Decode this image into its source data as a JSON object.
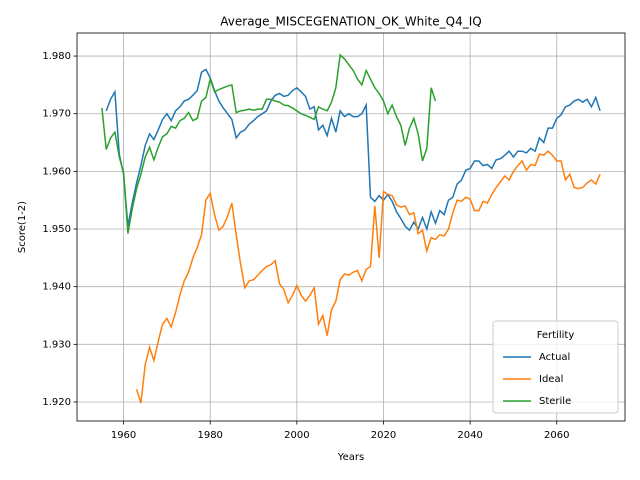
{
  "chart_data": {
    "type": "line",
    "title": "Average_MISCEGENATION_OK_White_Q4_IQ",
    "x_label": "Years",
    "y_label": "Score(1-2)",
    "legend_title": "Fertility",
    "legend": "lower right",
    "grid": true,
    "xlim": [
      1949.25,
      2075.75
    ],
    "ylim": [
      1.9167,
      1.984
    ],
    "xticks": [
      1960,
      1980,
      2000,
      2020,
      2040,
      2060
    ],
    "yticks": [
      {
        "value": 1.92,
        "label": "1.920"
      },
      {
        "value": 1.93,
        "label": "1.930"
      },
      {
        "value": 1.94,
        "label": "1.940"
      },
      {
        "value": 1.95,
        "label": "1.950"
      },
      {
        "value": 1.96,
        "label": "1.960"
      },
      {
        "value": 1.97,
        "label": "1.970"
      },
      {
        "value": 1.98,
        "label": "1.980"
      }
    ],
    "x": [
      1955,
      1956,
      1957,
      1958,
      1959,
      1960,
      1961,
      1962,
      1963,
      1964,
      1965,
      1966,
      1967,
      1968,
      1969,
      1970,
      1971,
      1972,
      1973,
      1974,
      1975,
      1976,
      1977,
      1978,
      1979,
      1980,
      1981,
      1982,
      1983,
      1984,
      1985,
      1986,
      1987,
      1988,
      1989,
      1990,
      1991,
      1992,
      1993,
      1994,
      1995,
      1996,
      1997,
      1998,
      1999,
      2000,
      2001,
      2002,
      2003,
      2004,
      2005,
      2006,
      2007,
      2008,
      2009,
      2010,
      2011,
      2012,
      2013,
      2014,
      2015,
      2016,
      2017,
      2018,
      2019,
      2020,
      2021,
      2022,
      2023,
      2024,
      2025,
      2026,
      2027,
      2028,
      2029,
      2030,
      2031,
      2032,
      2033,
      2034,
      2035,
      2036,
      2037,
      2038,
      2039,
      2040,
      2041,
      2042,
      2043,
      2044,
      2045,
      2046,
      2047,
      2048,
      2049,
      2050,
      2051,
      2052,
      2053,
      2054,
      2055,
      2056,
      2057,
      2058,
      2059,
      2060,
      2061,
      2062,
      2063,
      2064,
      2065,
      2066,
      2067,
      2068,
      2069,
      2070
    ],
    "series": [
      {
        "name": "Actual",
        "color": "#1f77b4",
        "values": [
          null,
          1.9705,
          1.9725,
          1.9738,
          1.963,
          1.9595,
          1.9505,
          1.9545,
          1.958,
          1.961,
          1.9645,
          1.9665,
          1.9655,
          1.9672,
          1.969,
          1.97,
          1.9688,
          1.9705,
          1.9712,
          1.9722,
          1.9725,
          1.9732,
          1.974,
          1.9772,
          1.9777,
          1.9762,
          1.974,
          1.9722,
          1.971,
          1.97,
          1.969,
          1.9658,
          1.9668,
          1.9672,
          1.9682,
          1.9688,
          1.9695,
          1.97,
          1.9705,
          1.9722,
          1.9732,
          1.9735,
          1.973,
          1.9732,
          1.974,
          1.9745,
          1.9738,
          1.973,
          1.9708,
          1.9712,
          1.9672,
          1.968,
          1.9662,
          1.9692,
          1.9668,
          1.9705,
          1.9695,
          1.97,
          1.9695,
          1.9695,
          1.97,
          1.9715,
          1.9555,
          1.9548,
          1.9558,
          1.955,
          1.956,
          1.9548,
          1.953,
          1.9518,
          1.9505,
          1.9498,
          1.9512,
          1.95,
          1.952,
          1.95,
          1.953,
          1.951,
          1.9532,
          1.9525,
          1.955,
          1.9555,
          1.9578,
          1.9585,
          1.9602,
          1.9605,
          1.9618,
          1.9618,
          1.961,
          1.9612,
          1.9605,
          1.962,
          1.9622,
          1.9628,
          1.9635,
          1.9625,
          1.9635,
          1.9635,
          1.9632,
          1.964,
          1.9635,
          1.9658,
          1.965,
          1.9675,
          1.9675,
          1.9692,
          1.9698,
          1.9712,
          1.9715,
          1.9722,
          1.9725,
          1.972,
          1.9725,
          1.9712,
          1.9728,
          1.9705
        ]
      },
      {
        "name": "Ideal",
        "color": "#ff7f0e",
        "values": [
          null,
          null,
          null,
          null,
          null,
          null,
          null,
          null,
          1.9222,
          1.9198,
          1.9265,
          1.9295,
          1.9272,
          1.9305,
          1.9335,
          1.9345,
          1.933,
          1.9355,
          1.9385,
          1.941,
          1.9425,
          1.945,
          1.9468,
          1.949,
          1.955,
          1.9562,
          1.9525,
          1.9498,
          1.9505,
          1.9522,
          1.9545,
          1.949,
          1.944,
          1.9398,
          1.941,
          1.9412,
          1.942,
          1.9428,
          1.9435,
          1.9438,
          1.9445,
          1.9405,
          1.9395,
          1.9372,
          1.9385,
          1.9402,
          1.9385,
          1.9375,
          1.9385,
          1.9398,
          1.9335,
          1.935,
          1.9315,
          1.936,
          1.9375,
          1.9412,
          1.9422,
          1.942,
          1.9425,
          1.9428,
          1.941,
          1.943,
          1.9435,
          1.954,
          1.945,
          1.9565,
          1.956,
          1.9558,
          1.9542,
          1.9538,
          1.954,
          1.9525,
          1.9528,
          1.9492,
          1.9498,
          1.9462,
          1.9485,
          1.9482,
          1.949,
          1.9488,
          1.95,
          1.9528,
          1.955,
          1.9548,
          1.9555,
          1.9552,
          1.9532,
          1.9532,
          1.9548,
          1.9545,
          1.956,
          1.9572,
          1.9582,
          1.9592,
          1.9585,
          1.96,
          1.961,
          1.9618,
          1.9602,
          1.9612,
          1.961,
          1.963,
          1.9628,
          1.9635,
          1.9628,
          1.9618,
          1.9618,
          1.9585,
          1.9595,
          1.9572,
          1.957,
          1.9572,
          1.958,
          1.9585,
          1.9578,
          1.9595
        ]
      },
      {
        "name": "Sterile",
        "color": "#2ca02c",
        "values": [
          1.971,
          1.9638,
          1.9658,
          1.9668,
          1.9625,
          1.9598,
          1.9492,
          1.9535,
          1.957,
          1.9595,
          1.9625,
          1.9642,
          1.962,
          1.9642,
          1.966,
          1.9665,
          1.9678,
          1.9675,
          1.9688,
          1.9692,
          1.9702,
          1.9688,
          1.9692,
          1.9722,
          1.9728,
          1.976,
          1.9738,
          1.9742,
          1.9745,
          1.9748,
          1.975,
          1.9702,
          1.9705,
          1.9706,
          1.9708,
          1.9706,
          1.9708,
          1.9708,
          1.9725,
          1.9725,
          1.9722,
          1.972,
          1.9715,
          1.9714,
          1.971,
          1.9705,
          1.97,
          1.9697,
          1.9694,
          1.969,
          1.9712,
          1.9708,
          1.9705,
          1.972,
          1.9745,
          1.9802,
          1.9795,
          1.9785,
          1.9775,
          1.976,
          1.975,
          1.9775,
          1.976,
          1.9745,
          1.9735,
          1.9722,
          1.97,
          1.9715,
          1.9695,
          1.968,
          1.9645,
          1.9675,
          1.9692,
          1.9665,
          1.9618,
          1.964,
          1.9745,
          1.9722,
          null,
          null,
          null,
          null,
          null,
          null,
          null,
          null,
          null,
          null,
          null,
          null,
          null,
          null,
          null,
          null,
          null,
          null,
          null,
          null,
          null,
          null,
          null,
          null,
          null,
          null,
          null,
          null,
          null,
          null,
          null,
          null,
          null,
          null,
          null,
          null,
          null,
          null
        ]
      }
    ]
  }
}
